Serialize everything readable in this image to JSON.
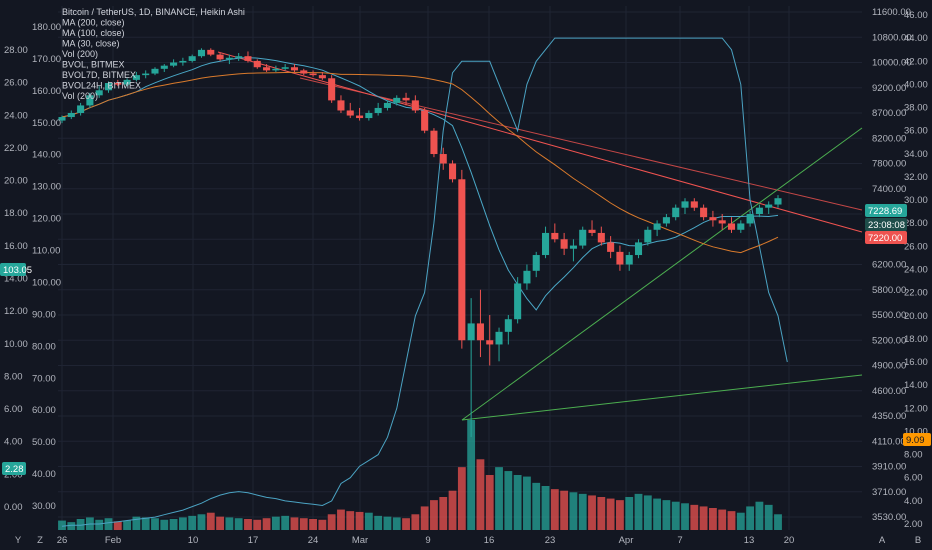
{
  "chart_data": {
    "type": "candlestick",
    "legend": [
      "Bitcoin / TetherUS, 1D, BINANCE, Heikin Ashi",
      "MA (200, close)",
      "MA (100, close)",
      "MA (30, close)",
      "Vol (200)",
      "BVOL, BITMEX",
      "BVOL7D, BITMEX",
      "BVOL24H, BITMEX",
      "Vol (200)"
    ],
    "x_ticks": [
      "26",
      "Feb",
      "10",
      "17",
      "24",
      "Mar",
      "9",
      "16",
      "23",
      "Apr",
      "7",
      "13",
      "20"
    ],
    "left_axis_outer": [
      "180.00",
      "170.00",
      "160.00",
      "150.00",
      "140.00",
      "130.00",
      "120.00",
      "110.00",
      "100.00",
      "90.00",
      "80.00",
      "70.00",
      "60.00",
      "50.00",
      "40.00",
      "30.00"
    ],
    "left_axis_inner": [
      "28.00",
      "26.00",
      "24.00",
      "22.00",
      "20.00",
      "18.00",
      "16.00",
      "14.00",
      "12.00",
      "10.00",
      "8.00",
      "6.00",
      "4.00",
      "2.00",
      "0.00"
    ],
    "right_axis_price": [
      "11600.00",
      "10800.00",
      "10000.00",
      "9200.00",
      "8700.00",
      "8200.00",
      "7800.00",
      "7400.00",
      "7000.00",
      "6600.00",
      "6200.00",
      "5800.00",
      "5500.00",
      "5200.00",
      "4900.00",
      "4600.00",
      "4350.00",
      "4110.00",
      "3910.00",
      "3710.00",
      "3530.00"
    ],
    "right_axis_vol": [
      "46.00",
      "44.00",
      "42.00",
      "40.00",
      "38.00",
      "36.00",
      "34.00",
      "32.00",
      "30.00",
      "28.00",
      "26.00",
      "24.00",
      "22.00",
      "20.00",
      "18.00",
      "16.00",
      "14.00",
      "12.00",
      "10.00",
      "8.00",
      "6.00",
      "4.00",
      "2.00"
    ],
    "price_tags": {
      "last": "7228.69",
      "countdown": "23:08:08",
      "open": "7220.00",
      "bvol": "9.09",
      "left_ma": "103.05",
      "left_vol": "2.28"
    },
    "candles": [
      [
        8550,
        8650,
        8500,
        8620
      ],
      [
        8620,
        8750,
        8580,
        8700
      ],
      [
        8700,
        8900,
        8650,
        8850
      ],
      [
        8850,
        9100,
        8800,
        9050
      ],
      [
        9050,
        9250,
        9000,
        9150
      ],
      [
        9150,
        9400,
        9100,
        9350
      ],
      [
        9350,
        9450,
        9250,
        9300
      ],
      [
        9300,
        9500,
        9250,
        9450
      ],
      [
        9450,
        9700,
        9400,
        9600
      ],
      [
        9600,
        9750,
        9500,
        9650
      ],
      [
        9650,
        9850,
        9600,
        9800
      ],
      [
        9800,
        9950,
        9700,
        9900
      ],
      [
        9900,
        10100,
        9850,
        10000
      ],
      [
        10000,
        10150,
        9900,
        10050
      ],
      [
        10050,
        10250,
        10000,
        10200
      ],
      [
        10200,
        10450,
        10150,
        10400
      ],
      [
        10400,
        10450,
        10200,
        10250
      ],
      [
        10250,
        10300,
        10050,
        10100
      ],
      [
        10100,
        10250,
        9950,
        10150
      ],
      [
        10150,
        10300,
        10050,
        10200
      ],
      [
        10200,
        10350,
        10000,
        10050
      ],
      [
        10050,
        10100,
        9800,
        9850
      ],
      [
        9850,
        9950,
        9700,
        9750
      ],
      [
        9750,
        9900,
        9700,
        9800
      ],
      [
        9800,
        9950,
        9750,
        9850
      ],
      [
        9850,
        9950,
        9700,
        9750
      ],
      [
        9750,
        9800,
        9600,
        9650
      ],
      [
        9650,
        9750,
        9550,
        9600
      ],
      [
        9600,
        9700,
        9450,
        9500
      ],
      [
        9500,
        9600,
        8900,
        8950
      ],
      [
        8950,
        9050,
        8700,
        8750
      ],
      [
        8750,
        8900,
        8600,
        8650
      ],
      [
        8650,
        8800,
        8550,
        8600
      ],
      [
        8600,
        8750,
        8550,
        8700
      ],
      [
        8700,
        8900,
        8650,
        8800
      ],
      [
        8800,
        8950,
        8750,
        8900
      ],
      [
        8900,
        9050,
        8850,
        9000
      ],
      [
        9000,
        9100,
        8850,
        8950
      ],
      [
        8950,
        9050,
        8700,
        8750
      ],
      [
        8750,
        8800,
        8300,
        8350
      ],
      [
        8350,
        8400,
        7900,
        7950
      ],
      [
        7950,
        8050,
        7700,
        7800
      ],
      [
        7800,
        7850,
        7500,
        7550
      ],
      [
        7550,
        7700,
        5100,
        5200
      ],
      [
        5200,
        5700,
        4150,
        5400
      ],
      [
        5400,
        5800,
        5000,
        5200
      ],
      [
        5200,
        5500,
        4900,
        5150
      ],
      [
        5150,
        5350,
        4950,
        5300
      ],
      [
        5300,
        5500,
        5150,
        5450
      ],
      [
        5450,
        6000,
        5400,
        5900
      ],
      [
        5900,
        6200,
        5800,
        6100
      ],
      [
        6100,
        6400,
        6000,
        6350
      ],
      [
        6350,
        6800,
        6300,
        6700
      ],
      [
        6700,
        6850,
        6550,
        6600
      ],
      [
        6600,
        6700,
        6350,
        6450
      ],
      [
        6450,
        6600,
        6250,
        6500
      ],
      [
        6500,
        6800,
        6450,
        6750
      ],
      [
        6750,
        6900,
        6650,
        6700
      ],
      [
        6700,
        6800,
        6500,
        6550
      ],
      [
        6550,
        6650,
        6300,
        6400
      ],
      [
        6400,
        6500,
        6100,
        6200
      ],
      [
        6200,
        6400,
        6100,
        6350
      ],
      [
        6350,
        6600,
        6300,
        6550
      ],
      [
        6550,
        6800,
        6500,
        6750
      ],
      [
        6750,
        6900,
        6650,
        6850
      ],
      [
        6850,
        7000,
        6800,
        6950
      ],
      [
        6950,
        7150,
        6900,
        7100
      ],
      [
        7100,
        7250,
        7000,
        7200
      ],
      [
        7200,
        7250,
        7050,
        7100
      ],
      [
        7100,
        7150,
        6900,
        6950
      ],
      [
        6950,
        7050,
        6800,
        6900
      ],
      [
        6900,
        7000,
        6750,
        6850
      ],
      [
        6850,
        6950,
        6700,
        6750
      ],
      [
        6750,
        6900,
        6700,
        6850
      ],
      [
        6850,
        7050,
        6800,
        7000
      ],
      [
        7000,
        7150,
        6950,
        7100
      ],
      [
        7100,
        7200,
        7000,
        7150
      ],
      [
        7150,
        7300,
        7100,
        7250
      ]
    ],
    "volumes": [
      120,
      100,
      140,
      160,
      130,
      150,
      110,
      120,
      170,
      160,
      150,
      130,
      140,
      160,
      180,
      200,
      220,
      170,
      160,
      150,
      140,
      130,
      150,
      170,
      180,
      160,
      150,
      140,
      130,
      200,
      260,
      240,
      230,
      220,
      180,
      170,
      160,
      150,
      200,
      300,
      380,
      420,
      500,
      800,
      1400,
      900,
      700,
      800,
      750,
      700,
      680,
      600,
      560,
      520,
      500,
      480,
      460,
      440,
      420,
      400,
      380,
      420,
      460,
      440,
      400,
      380,
      360,
      340,
      320,
      300,
      280,
      260,
      240,
      220,
      300,
      360,
      320,
      200
    ],
    "bvol7d": [
      1.8,
      1.9,
      1.9,
      2,
      2,
      2.1,
      2.2,
      2.3,
      2.4,
      2.5,
      2.6,
      2.8,
      3,
      3.2,
      3.5,
      3.8,
      4.2,
      4.5,
      4.7,
      4.8,
      4.7,
      4.5,
      4.3,
      4.2,
      4,
      3.9,
      3.8,
      3.7,
      3.6,
      4,
      5.5,
      6,
      7,
      7.5,
      8,
      9.5,
      12,
      16,
      20,
      22,
      28,
      36,
      41,
      42,
      42,
      42,
      42,
      40,
      38,
      36,
      40,
      42,
      43,
      44,
      44,
      44,
      44,
      44,
      44,
      44,
      44,
      44,
      44,
      44,
      44,
      44,
      44,
      44,
      44,
      44,
      44,
      44,
      43,
      40,
      30,
      26,
      22,
      20,
      16
    ],
    "ylim_price": [
      3530,
      11600
    ]
  }
}
